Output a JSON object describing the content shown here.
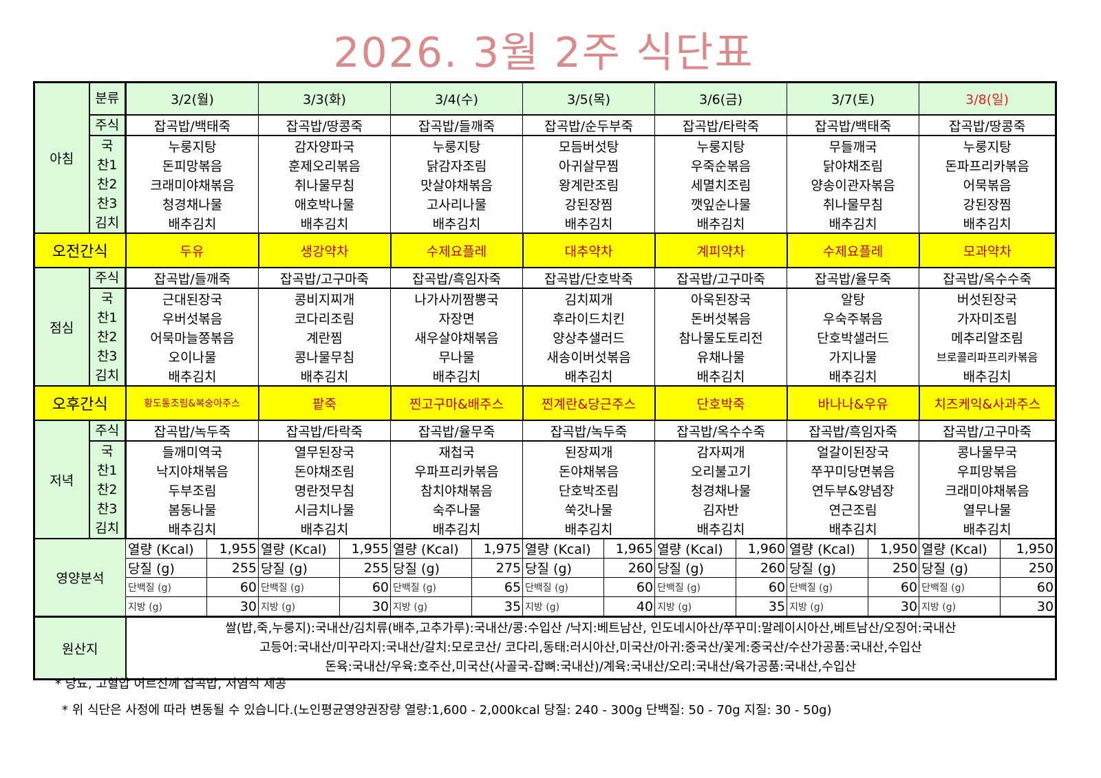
{
  "title": "2026. 3월 2주 식단표",
  "header": {
    "category_label": "분류",
    "days": [
      "3/2(월)",
      "3/3(화)",
      "3/4(수)",
      "3/5(목)",
      "3/6(금)",
      "3/7(토)",
      "3/8(일)"
    ]
  },
  "meals": {
    "breakfast": {
      "label": "아침",
      "rows": [
        {
          "cat": "주식",
          "items": [
            "잡곡밥/백태죽",
            "잡곡밥/땅콩죽",
            "잡곡밥/들깨죽",
            "잡곡밥/순두부죽",
            "잡곡밥/타락죽",
            "잡곡밥/백태죽",
            "잡곡밥/땅콩죽"
          ]
        },
        {
          "cat": "국",
          "items": [
            "누룽지탕",
            "감자양파국",
            "누룽지탕",
            "모듬버섯탕",
            "누룽지탕",
            "무들깨국",
            "누룽지탕"
          ]
        },
        {
          "cat": "찬1",
          "items": [
            "돈피망볶음",
            "훈제오리볶음",
            "닭감자조림",
            "아귀살무찜",
            "우죽순볶음",
            "닭야채조림",
            "돈파프리카볶음"
          ]
        },
        {
          "cat": "찬2",
          "items": [
            "크래미야채볶음",
            "취나물무침",
            "맛살야채볶음",
            "왕계란조림",
            "세멸치조림",
            "양송이관자볶음",
            "어묵볶음"
          ]
        },
        {
          "cat": "찬3",
          "items": [
            "청경채나물",
            "애호박나물",
            "고사리나물",
            "강된장찜",
            "깻잎순나물",
            "취나물무침",
            "강된장찜"
          ]
        },
        {
          "cat": "김치",
          "items": [
            "배추김치",
            "배추김치",
            "배추김치",
            "배추김치",
            "배추김치",
            "배추김치",
            "배추김치"
          ]
        }
      ]
    },
    "lunch": {
      "label": "점심",
      "rows": [
        {
          "cat": "주식",
          "items": [
            "잡곡밥/들깨죽",
            "잡곡밥/고구마죽",
            "잡곡밥/흑임자죽",
            "잡곡밥/단호박죽",
            "잡곡밥/고구마죽",
            "잡곡밥/율무죽",
            "잡곡밥/옥수수죽"
          ]
        },
        {
          "cat": "국",
          "items": [
            "근대된장국",
            "콩비지찌개",
            "나가사끼짬뽕국",
            "김치찌개",
            "아욱된장국",
            "알탕",
            "버섯된장국"
          ]
        },
        {
          "cat": "찬1",
          "items": [
            "우버섯볶음",
            "코다리조림",
            "자장면",
            "후라이드치킨",
            "돈버섯볶음",
            "우숙주볶음",
            "가자미조림"
          ]
        },
        {
          "cat": "찬2",
          "items": [
            "어묵마늘쫑볶음",
            "계란찜",
            "새우살야채볶음",
            "양상추샐러드",
            "참나물도토리전",
            "단호박샐러드",
            "메추리알조림"
          ]
        },
        {
          "cat": "찬3",
          "items": [
            "오이나물",
            "콩나물무침",
            "무나물",
            "새송이버섯볶음",
            "유채나물",
            "가지나물",
            "브로콜리파프리카볶음"
          ]
        },
        {
          "cat": "김치",
          "items": [
            "배추김치",
            "배추김치",
            "배추김치",
            "배추김치",
            "배추김치",
            "배추김치",
            "배추김치"
          ]
        }
      ]
    },
    "dinner": {
      "label": "저녁",
      "rows": [
        {
          "cat": "주식",
          "items": [
            "잡곡밥/녹두죽",
            "잡곡밥/타락죽",
            "잡곡밥/율무죽",
            "잡곡밥/녹두죽",
            "잡곡밥/옥수수죽",
            "잡곡밥/흑임자죽",
            "잡곡밥/고구마죽"
          ]
        },
        {
          "cat": "국",
          "items": [
            "들깨미역국",
            "열무된장국",
            "재첩국",
            "된장찌개",
            "감자찌개",
            "얼갈이된장국",
            "콩나물무국"
          ]
        },
        {
          "cat": "찬1",
          "items": [
            "낙지야채볶음",
            "돈야채조림",
            "우파프리카볶음",
            "돈야채볶음",
            "오리불고기",
            "쭈꾸미당면볶음",
            "우피망볶음"
          ]
        },
        {
          "cat": "찬2",
          "items": [
            "두부조림",
            "명란젓무침",
            "참치야채볶음",
            "단호박조림",
            "청경채나물",
            "연두부&양념장",
            "크래미야채볶음"
          ]
        },
        {
          "cat": "찬3",
          "items": [
            "봄동나물",
            "시금치나물",
            "숙주나물",
            "쑥갓나물",
            "김자반",
            "연근조림",
            "열무나물"
          ]
        },
        {
          "cat": "김치",
          "items": [
            "배추김치",
            "배추김치",
            "배추김치",
            "배추김치",
            "배추김치",
            "배추김치",
            "배추김치"
          ]
        }
      ]
    }
  },
  "snacks": {
    "morning": {
      "label": "오전간식",
      "items": [
        "두유",
        "생강약차",
        "수제요플레",
        "대추약차",
        "계피약차",
        "수제요플레",
        "모과약차"
      ]
    },
    "afternoon": {
      "label": "오후간식",
      "items": [
        "황도통조림&복숭아주스",
        "팥죽",
        "찐고구마&배주스",
        "찐계란&당근주스",
        "단호박죽",
        "바나나&우유",
        "치즈케익&사과주스"
      ]
    }
  },
  "nutrition": {
    "label": "영양분석",
    "rows": [
      {
        "name": "열량 (Kcal)",
        "values": [
          "1,955",
          "1,955",
          "1,975",
          "1,965",
          "1,960",
          "1,950",
          "1,950"
        ]
      },
      {
        "name": "당질 (g)",
        "values": [
          "255",
          "255",
          "275",
          "260",
          "260",
          "250",
          "250"
        ]
      },
      {
        "name": "단백질 (g)",
        "values": [
          "60",
          "60",
          "65",
          "60",
          "60",
          "60",
          "60"
        ]
      },
      {
        "name": "지방 (g)",
        "values": [
          "30",
          "30",
          "35",
          "40",
          "35",
          "30",
          "30"
        ]
      }
    ]
  },
  "origin": {
    "label": "원산지",
    "lines": [
      "쌀(밥,죽,누룽지):국내산/김치류(배추,고추가루):국내산/콩:수입산 /낙지:베트남산, 인도네시아산/쭈꾸미:말레이시아산,베트남산/오징어:국내산",
      "고등어:국내산/미꾸라지:국내산/갈치:모로코산/ 코다리,동태:러시아산,미국산/아귀:중국산/꽃게:중국산/수산가공품:국내산,수입산",
      "돈육:국내산/우육:호주산,미국산(사골국-잡뼈:국내산)/계육:국내산/오리:국내산/육가공품:국내산,수입산"
    ]
  },
  "notes": [
    "* 당뇨, 고혈압 어르신께 잡곡밥, 저염식 제공",
    "* 위 식단은 사정에 따라 변동될 수 있습니다.(노인평균영양권장량 열량:1,600 - 2,000kcal 당질: 240 - 300g 단백질: 50 - 70g 지질: 30 - 50g)"
  ],
  "colors": {
    "title": "#d98b8c",
    "header_green": "#dafada",
    "snack_yellow": "#ffff00",
    "snack_text": "#c00000",
    "sunday": "#e02020"
  }
}
